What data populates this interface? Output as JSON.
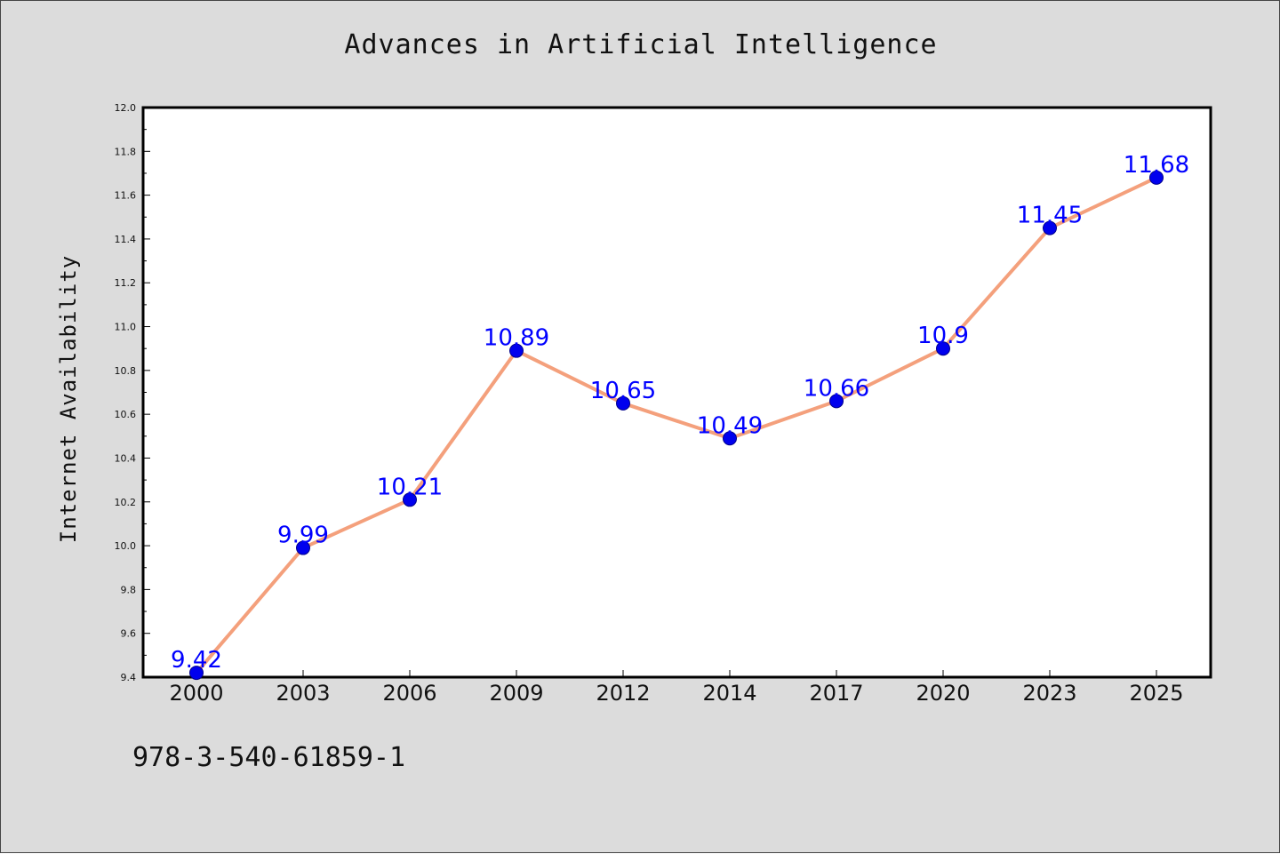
{
  "chart_data": {
    "type": "line",
    "title": "Advances in Artificial Intelligence",
    "xlabel": "",
    "ylabel": "Internet Availability",
    "categories": [
      "2000",
      "2003",
      "2006",
      "2009",
      "2012",
      "2014",
      "2017",
      "2020",
      "2023",
      "2025"
    ],
    "series": [
      {
        "values": [
          9.42,
          9.99,
          10.21,
          10.89,
          10.65,
          10.49,
          10.66,
          10.9,
          11.45,
          11.68
        ]
      }
    ],
    "data_labels": [
      "9.42",
      "9.99",
      "10.21",
      "10.89",
      "10.65",
      "10.49",
      "10.66",
      "10.9",
      "11.45",
      "11.68"
    ],
    "ylim": [
      9.4,
      12.0
    ],
    "yticks": [
      "9.4",
      "9.6",
      "9.8",
      "10.0",
      "10.2",
      "10.4",
      "10.6",
      "10.8",
      "11.0",
      "11.2",
      "11.4",
      "11.6",
      "11.8",
      "12.0"
    ],
    "grid": false,
    "legend": "none",
    "colors": {
      "line": "#f4a07c",
      "marker": "#0000ee",
      "label": "#0000ff",
      "plot_bg": "#ffffff",
      "figure_bg": "#dcdcdc"
    }
  },
  "footer": {
    "code": "978-3-540-61859-1"
  }
}
